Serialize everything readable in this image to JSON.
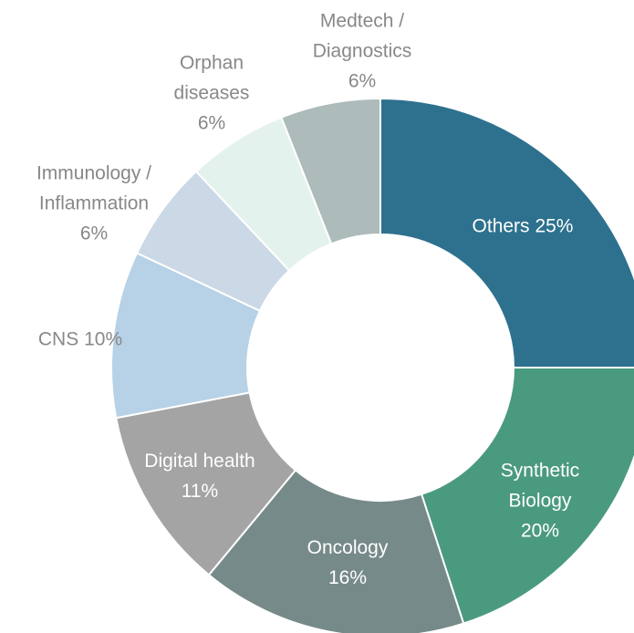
{
  "chart_data": {
    "type": "donut",
    "categories": [
      "Others",
      "Synthetic Biology",
      "Oncology",
      "Digital health",
      "CNS",
      "Immunology / Inflammation",
      "Orphan diseases",
      "Medtech / Diagnostics"
    ],
    "values": [
      25,
      20,
      16,
      11,
      10,
      6,
      6,
      6
    ],
    "value_labels": [
      "25%",
      "20%",
      "16%",
      "11%",
      "10%",
      "6%",
      "6%",
      "6%"
    ],
    "colors": [
      "#2e718e",
      "#4a9a80",
      "#768a89",
      "#a4a4a4",
      "#b7d1e6",
      "#cbd8e5",
      "#e4f2ee",
      "#adbbba"
    ]
  }
}
